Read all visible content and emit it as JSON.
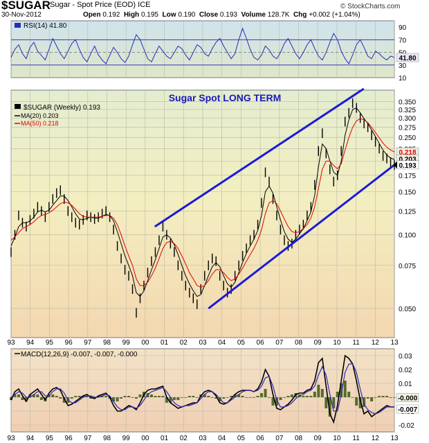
{
  "header": {
    "ticker": "$SUGAR",
    "subtitle": "Sugar - Spot Price (EOD)  ICE",
    "date": "30-Nov-2012",
    "open_label": "Open",
    "open": "0.192",
    "high_label": "High",
    "high": "0.195",
    "low_label": "Low",
    "low": "0.190",
    "close_label": "Close",
    "close": "0.193",
    "volume_label": "Volume",
    "volume": "128.7K",
    "chg_label": "Chg",
    "chg": "+0.002 (+1.04%)",
    "logo": "© StockCharts.com"
  },
  "colors": {
    "price": "#000000",
    "ma20": "#000000",
    "ma50": "#e00000",
    "rsi": "#2a2ab8",
    "macd": "#000000",
    "signal": "#2a2ab8",
    "hist": "#556b2f",
    "trend": "#1a1ad8",
    "grid": "#b8b8a8"
  },
  "chart_data": [
    {
      "type": "line",
      "panel": "RSI",
      "title": "RSI(14) 41.80",
      "series": [
        {
          "name": "RSI(14)",
          "values": [
            42,
            55,
            62,
            48,
            40,
            58,
            66,
            52,
            45,
            38,
            55,
            72,
            60,
            48,
            40,
            52,
            64,
            70,
            55,
            42,
            35,
            48,
            60,
            46,
            38,
            32,
            45,
            58,
            50,
            40,
            34,
            44,
            62,
            78,
            70,
            55,
            40,
            35,
            48,
            60,
            52,
            44,
            40,
            50,
            60,
            56,
            46,
            38,
            50,
            62,
            58,
            48,
            44,
            56,
            66,
            72,
            60,
            50,
            40,
            48,
            70,
            88,
            72,
            55,
            42,
            38,
            46,
            60,
            54,
            44,
            40,
            50,
            64,
            72,
            60,
            48,
            40,
            50,
            62,
            70,
            56,
            44,
            38,
            50,
            66,
            80,
            70,
            52,
            40,
            32,
            46,
            62,
            70,
            58,
            44,
            40,
            52,
            48,
            42,
            38,
            44,
            42
          ]
        }
      ],
      "x_range": [
        1993,
        2013
      ],
      "ylim": [
        10,
        100
      ],
      "ticks": [
        "90",
        "70",
        "50",
        "30",
        "10"
      ],
      "last_label": "41.80"
    },
    {
      "type": "line",
      "panel": "Price",
      "title": "Sugar Spot LONG TERM",
      "series": [
        {
          "name": "$SUGAR (Weekly) 0.193",
          "values": [
            0.085,
            0.1,
            0.12,
            0.112,
            0.108,
            0.115,
            0.122,
            0.13,
            0.125,
            0.118,
            0.13,
            0.14,
            0.148,
            0.152,
            0.14,
            0.125,
            0.118,
            0.112,
            0.11,
            0.115,
            0.12,
            0.118,
            0.116,
            0.118,
            0.122,
            0.125,
            0.118,
            0.105,
            0.09,
            0.08,
            0.072,
            0.068,
            0.06,
            0.048,
            0.055,
            0.062,
            0.07,
            0.078,
            0.085,
            0.095,
            0.108,
            0.1,
            0.092,
            0.085,
            0.075,
            0.068,
            0.062,
            0.058,
            0.055,
            0.052,
            0.06,
            0.068,
            0.075,
            0.08,
            0.078,
            0.068,
            0.062,
            0.058,
            0.06,
            0.068,
            0.075,
            0.082,
            0.088,
            0.095,
            0.1,
            0.11,
            0.135,
            0.18,
            0.165,
            0.14,
            0.12,
            0.105,
            0.095,
            0.09,
            0.092,
            0.1,
            0.105,
            0.11,
            0.12,
            0.13,
            0.16,
            0.22,
            0.26,
            0.215,
            0.185,
            0.165,
            0.175,
            0.22,
            0.29,
            0.315,
            0.345,
            0.33,
            0.3,
            0.285,
            0.275,
            0.255,
            0.24,
            0.225,
            0.21,
            0.205,
            0.198,
            0.193
          ]
        },
        {
          "name": "MA(20) 0.203",
          "values": [
            0.09,
            0.098,
            0.108,
            0.112,
            0.112,
            0.114,
            0.118,
            0.124,
            0.126,
            0.124,
            0.126,
            0.132,
            0.138,
            0.144,
            0.144,
            0.138,
            0.13,
            0.122,
            0.116,
            0.115,
            0.117,
            0.118,
            0.117,
            0.117,
            0.119,
            0.121,
            0.12,
            0.114,
            0.103,
            0.092,
            0.082,
            0.075,
            0.068,
            0.058,
            0.056,
            0.059,
            0.065,
            0.072,
            0.079,
            0.088,
            0.098,
            0.1,
            0.097,
            0.091,
            0.083,
            0.075,
            0.068,
            0.063,
            0.059,
            0.056,
            0.057,
            0.062,
            0.068,
            0.074,
            0.077,
            0.074,
            0.068,
            0.063,
            0.061,
            0.064,
            0.07,
            0.077,
            0.084,
            0.09,
            0.096,
            0.104,
            0.12,
            0.15,
            0.158,
            0.148,
            0.13,
            0.115,
            0.103,
            0.096,
            0.093,
            0.096,
            0.101,
            0.106,
            0.114,
            0.124,
            0.145,
            0.19,
            0.235,
            0.225,
            0.2,
            0.18,
            0.175,
            0.2,
            0.255,
            0.295,
            0.325,
            0.33,
            0.315,
            0.298,
            0.285,
            0.268,
            0.252,
            0.236,
            0.222,
            0.212,
            0.206,
            0.203
          ]
        },
        {
          "name": "MA(50) 0.218",
          "values": [
            0.095,
            0.098,
            0.102,
            0.106,
            0.108,
            0.11,
            0.113,
            0.117,
            0.12,
            0.121,
            0.123,
            0.126,
            0.13,
            0.134,
            0.136,
            0.135,
            0.132,
            0.127,
            0.122,
            0.119,
            0.118,
            0.118,
            0.118,
            0.118,
            0.119,
            0.12,
            0.12,
            0.117,
            0.11,
            0.1,
            0.09,
            0.082,
            0.075,
            0.066,
            0.062,
            0.062,
            0.064,
            0.068,
            0.073,
            0.08,
            0.088,
            0.093,
            0.094,
            0.092,
            0.088,
            0.082,
            0.076,
            0.07,
            0.066,
            0.062,
            0.061,
            0.062,
            0.065,
            0.069,
            0.072,
            0.072,
            0.07,
            0.067,
            0.065,
            0.066,
            0.069,
            0.073,
            0.078,
            0.083,
            0.088,
            0.095,
            0.105,
            0.122,
            0.135,
            0.138,
            0.134,
            0.125,
            0.116,
            0.108,
            0.103,
            0.102,
            0.103,
            0.106,
            0.11,
            0.117,
            0.13,
            0.155,
            0.185,
            0.2,
            0.2,
            0.192,
            0.186,
            0.195,
            0.222,
            0.25,
            0.275,
            0.292,
            0.298,
            0.295,
            0.287,
            0.275,
            0.262,
            0.249,
            0.237,
            0.228,
            0.222,
            0.218
          ]
        }
      ],
      "x_range": [
        1993,
        2013
      ],
      "log_scale": true,
      "ylim": [
        0.038,
        0.39
      ],
      "ticks": [
        "0.350",
        "0.325",
        "0.300",
        "0.275",
        "0.250",
        "0.225",
        "0.200",
        "0.175",
        "0.150",
        "0.125",
        "0.100",
        "0.075",
        "0.050"
      ],
      "last_labels": [
        "0.218",
        "0.203",
        "0.193"
      ],
      "trendlines": [
        {
          "x": [
            2000.5,
            2011.4
          ],
          "y": [
            0.108,
            0.395
          ]
        },
        {
          "x": [
            2003.3,
            2013.0
          ],
          "y": [
            0.05,
            0.193
          ]
        }
      ]
    },
    {
      "type": "line",
      "panel": "MACD",
      "title": "MACD(12,26,9) -0.007, -0.007, -0.000",
      "series": [
        {
          "name": "MACD(12,26,9)",
          "values": [
            -0.002,
            0.004,
            0.006,
            0.001,
            -0.003,
            0.002,
            0.004,
            0.006,
            0.002,
            -0.002,
            0.003,
            0.006,
            0.007,
            0.005,
            -0.001,
            -0.006,
            -0.005,
            -0.003,
            -0.001,
            0.001,
            0.002,
            0.0,
            -0.001,
            0.001,
            0.002,
            0.003,
            0.0,
            -0.006,
            -0.01,
            -0.01,
            -0.008,
            -0.006,
            -0.007,
            -0.009,
            -0.004,
            0.002,
            0.005,
            0.006,
            0.006,
            0.007,
            0.008,
            0.0,
            -0.004,
            -0.006,
            -0.008,
            -0.007,
            -0.006,
            -0.005,
            -0.004,
            -0.004,
            0.001,
            0.004,
            0.005,
            0.004,
            0.001,
            -0.004,
            -0.005,
            -0.004,
            -0.001,
            0.002,
            0.004,
            0.005,
            0.005,
            0.005,
            0.004,
            0.006,
            0.011,
            0.02,
            0.015,
            0.002,
            -0.008,
            -0.009,
            -0.007,
            -0.005,
            -0.002,
            0.002,
            0.003,
            0.003,
            0.005,
            0.006,
            0.012,
            0.025,
            0.028,
            0.008,
            -0.012,
            -0.018,
            -0.006,
            0.012,
            0.03,
            0.028,
            0.024,
            0.012,
            -0.002,
            -0.012,
            -0.01,
            -0.014,
            -0.012,
            -0.01,
            -0.008,
            -0.006,
            -0.007,
            -0.007
          ]
        },
        {
          "name": "Signal",
          "values": [
            0.0,
            0.002,
            0.004,
            0.003,
            0.0,
            0.0,
            0.002,
            0.004,
            0.004,
            0.001,
            0.001,
            0.004,
            0.006,
            0.006,
            0.003,
            -0.002,
            -0.004,
            -0.004,
            -0.002,
            0.0,
            0.001,
            0.001,
            0.0,
            0.0,
            0.001,
            0.002,
            0.001,
            -0.003,
            -0.007,
            -0.009,
            -0.009,
            -0.007,
            -0.007,
            -0.008,
            -0.006,
            -0.002,
            0.002,
            0.004,
            0.005,
            0.006,
            0.007,
            0.004,
            0.0,
            -0.004,
            -0.006,
            -0.007,
            -0.006,
            -0.006,
            -0.005,
            -0.004,
            -0.001,
            0.002,
            0.004,
            0.004,
            0.002,
            -0.001,
            -0.004,
            -0.004,
            -0.002,
            0.0,
            0.002,
            0.004,
            0.005,
            0.005,
            0.004,
            0.005,
            0.008,
            0.014,
            0.015,
            0.008,
            -0.002,
            -0.007,
            -0.007,
            -0.006,
            -0.004,
            -0.001,
            0.001,
            0.002,
            0.004,
            0.005,
            0.008,
            0.016,
            0.022,
            0.016,
            0.002,
            -0.01,
            -0.01,
            0.002,
            0.018,
            0.024,
            0.024,
            0.018,
            0.006,
            -0.005,
            -0.009,
            -0.011,
            -0.012,
            -0.011,
            -0.009,
            -0.007,
            -0.007,
            -0.007
          ]
        }
      ],
      "x_range": [
        1993,
        2013
      ],
      "ylim": [
        -0.025,
        0.035
      ],
      "ticks": [
        "0.03",
        "0.02",
        "0.01",
        "0.00",
        "-0.01",
        "-0.02"
      ],
      "last_labels": [
        "-0.000",
        "-0.007"
      ]
    }
  ],
  "x_axis_labels": [
    "93",
    "94",
    "95",
    "96",
    "97",
    "98",
    "99",
    "00",
    "01",
    "02",
    "03",
    "04",
    "05",
    "06",
    "07",
    "08",
    "09",
    "10",
    "11",
    "12",
    "13"
  ]
}
